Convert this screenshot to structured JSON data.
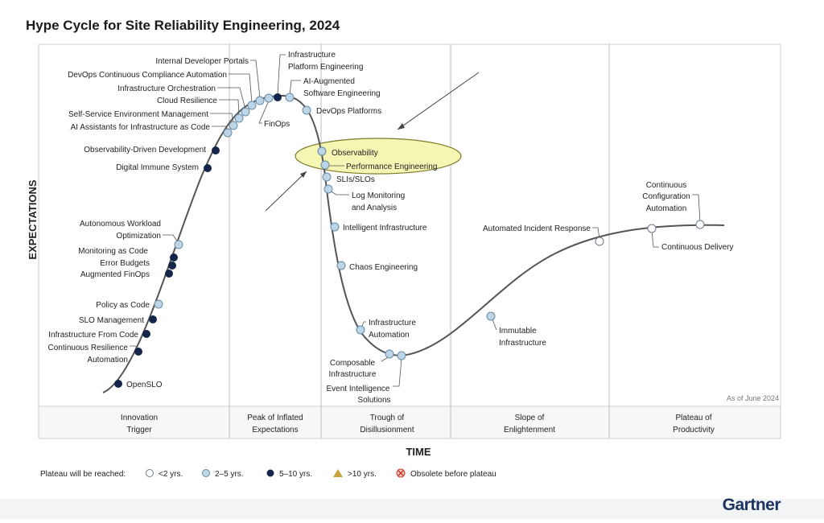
{
  "title": "Hype Cycle for Site Reliability Engineering, 2024",
  "y_axis_label": "EXPECTATIONS",
  "x_axis_label": "TIME",
  "as_of": "As of June 2024",
  "phases": [
    [
      "Innovation",
      "Trigger"
    ],
    [
      "Peak of Inflated",
      "Expectations"
    ],
    [
      "Trough of",
      "Disillusionment"
    ],
    [
      "Slope of",
      "Enlightenment"
    ],
    [
      "Plateau of",
      "Productivity"
    ]
  ],
  "technologies": [
    [
      "Internal Developer Portals"
    ],
    [
      "DevOps Continuous Compliance Automation"
    ],
    [
      "Infrastructure Orchestration"
    ],
    [
      "Cloud Resilience"
    ],
    [
      "Self-Service Environment Management"
    ],
    [
      "AI Assistants for Infrastructure as Code"
    ],
    [
      "FinOps"
    ],
    [
      "Infrastructure",
      "Platform Engineering"
    ],
    [
      "AI-Augmented",
      "Software Engineering"
    ],
    [
      "DevOps Platforms"
    ],
    [
      "Observability-Driven Development"
    ],
    [
      "Digital Immune System"
    ],
    [
      "Observability"
    ],
    [
      "Performance Engineering"
    ],
    [
      "SLIs/SLOs"
    ],
    [
      "Log Monitoring",
      "and Analysis"
    ],
    [
      "Intelligent Infrastructure"
    ],
    [
      "Chaos Engineering"
    ],
    [
      "Infrastructure",
      "Automation"
    ],
    [
      "Composable",
      "Infrastructure"
    ],
    [
      "Event Intelligence",
      "Solutions"
    ],
    [
      "Immutable",
      "Infrastructure"
    ],
    [
      "Automated Incident Response"
    ],
    [
      "Continuous",
      "Configuration",
      "Automation"
    ],
    [
      "Continuous Delivery"
    ],
    [
      "Autonomous Workload",
      "Optimization"
    ],
    [
      "Monitoring as Code"
    ],
    [
      "Error Budgets"
    ],
    [
      "Augmented FinOps"
    ],
    [
      "Policy as Code"
    ],
    [
      "SLO Management"
    ],
    [
      "Infrastructure From Code"
    ],
    [
      "Continuous Resilience",
      "Automation"
    ],
    [
      "OpenSLO"
    ]
  ],
  "legend": {
    "title": "Plateau will be reached:",
    "items": [
      "<2 yrs.",
      "2–5 yrs.",
      "5–10 yrs.",
      ">10 yrs.",
      "Obsolete before plateau"
    ]
  },
  "logo": "Gartner"
}
